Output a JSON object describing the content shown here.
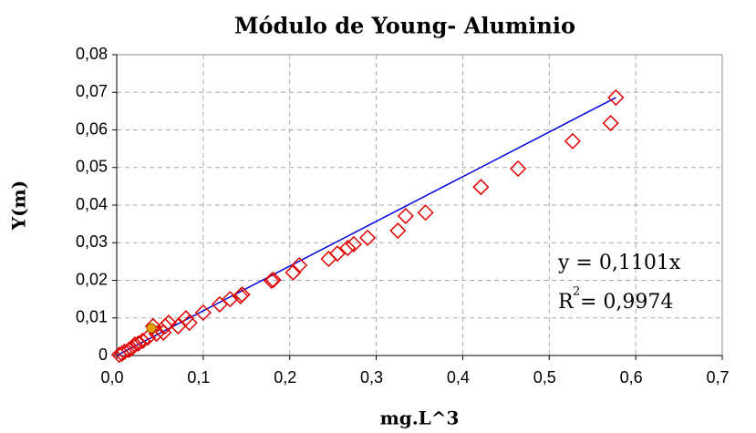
{
  "chart_data": {
    "type": "scatter",
    "title": "Módulo de Young- Aluminio",
    "x_label": "mg.L^3",
    "y_label": "Y(m)",
    "xlim": [
      0,
      0.7
    ],
    "ylim": [
      0,
      0.08
    ],
    "xticks": [
      {
        "value": 0,
        "label": "0,0"
      },
      {
        "value": 0.1,
        "label": "0,1"
      },
      {
        "value": 0.2,
        "label": "0,2"
      },
      {
        "value": 0.3,
        "label": "0,3"
      },
      {
        "value": 0.4,
        "label": "0,4"
      },
      {
        "value": 0.5,
        "label": "0,5"
      },
      {
        "value": 0.6,
        "label": "0,6"
      },
      {
        "value": 0.7,
        "label": "0,7"
      }
    ],
    "yticks": [
      0,
      {
        "value": 0.01,
        "label": "0,01"
      },
      {
        "value": 0.02,
        "label": "0,02"
      },
      {
        "value": 0.03,
        "label": "0,03"
      },
      {
        "value": 0.04,
        "label": "0,04"
      },
      {
        "value": 0.05,
        "label": "0,05"
      },
      {
        "value": 0.06,
        "label": "0,06"
      },
      {
        "value": 0.07,
        "label": "0,07"
      },
      {
        "value": 0.08,
        "label": "0,08"
      }
    ],
    "grid": true,
    "series": [
      {
        "color": "#e00000",
        "marker": "diamond",
        "x": [
          0.577,
          0.571,
          0.527,
          0.464,
          0.421,
          0.357,
          0.334,
          0.325,
          0.29,
          0.274,
          0.267,
          0.255,
          0.245,
          0.211,
          0.204,
          0.181,
          0.179,
          0.145,
          0.143,
          0.131,
          0.119,
          0.1,
          0.084,
          0.08,
          0.071,
          0.06,
          0.056,
          0.054,
          0.046,
          0.042,
          0.036,
          0.03,
          0.025,
          0.021,
          0.017,
          0.014,
          0.009,
          0.006,
          0.003
        ],
        "values": [
          0.0686,
          0.0618,
          0.057,
          0.0497,
          0.0448,
          0.038,
          0.0371,
          0.0332,
          0.0313,
          0.0296,
          0.0286,
          0.0271,
          0.0257,
          0.024,
          0.0221,
          0.0201,
          0.0199,
          0.0162,
          0.0158,
          0.015,
          0.0136,
          0.0114,
          0.0087,
          0.0099,
          0.0078,
          0.0087,
          0.0078,
          0.0061,
          0.0058,
          0.0078,
          0.0048,
          0.0039,
          0.0032,
          0.0029,
          0.0019,
          0.0015,
          0.001,
          0.0005,
          0.0002
        ]
      },
      {
        "color": "#e8a000",
        "marker": "circle",
        "x": [
          0.04
        ],
        "values": [
          0.0073
        ]
      }
    ],
    "trendline": {
      "color": "#0000e0",
      "x": [
        0,
        0.577
      ],
      "values": [
        0,
        0.0686
      ]
    },
    "equation": "y = 0,1101x",
    "r2": {
      "base": "R",
      "sup": "2",
      "rest": " = 0,9974"
    }
  }
}
